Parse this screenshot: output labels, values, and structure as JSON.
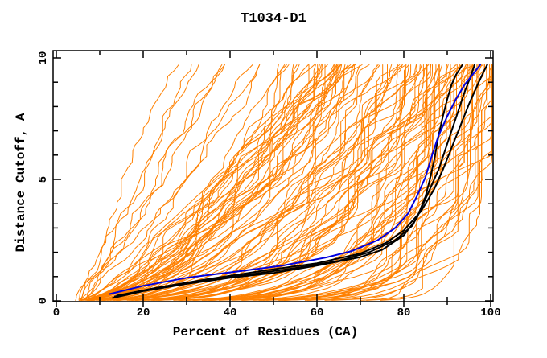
{
  "figure": {
    "background": "#ffffff"
  },
  "chart_data": {
    "type": "line",
    "title": "T1034-D1",
    "xlabel": "Percent of Residues (CA)",
    "ylabel": "Distance Cutoff, A",
    "xlim": [
      0,
      100
    ],
    "ylim": [
      0,
      10
    ],
    "x_major_ticks": [
      0,
      20,
      40,
      60,
      80,
      100
    ],
    "x_minor_ticks": [
      10,
      30,
      50,
      70,
      90
    ],
    "y_major_ticks": [
      0,
      5,
      10
    ],
    "y_minor_ticks": [
      1,
      2,
      3,
      4,
      6,
      7,
      8,
      9
    ],
    "grid": false,
    "legend": false,
    "curves_end_y": 9.72,
    "colors": {
      "ensemble": "#ff8000",
      "highlight": "#000000",
      "reference": "#0000e0",
      "frame": "#000000"
    },
    "highlight_series": [
      {
        "name": "black-model-1",
        "color": "#000000",
        "width": 2,
        "points": [
          [
            13,
            0.12
          ],
          [
            20,
            0.4
          ],
          [
            30,
            0.7
          ],
          [
            40,
            0.95
          ],
          [
            50,
            1.15
          ],
          [
            60,
            1.45
          ],
          [
            70,
            1.8
          ],
          [
            75,
            2.1
          ],
          [
            80,
            2.7
          ],
          [
            83,
            3.4
          ],
          [
            85,
            4.3
          ],
          [
            86,
            5.0
          ],
          [
            87,
            5.8
          ],
          [
            88,
            6.8
          ],
          [
            89,
            7.6
          ],
          [
            90,
            8.3
          ],
          [
            91,
            8.9
          ],
          [
            92,
            9.3
          ],
          [
            93.5,
            9.72
          ]
        ]
      },
      {
        "name": "black-model-2",
        "color": "#000000",
        "width": 2,
        "points": [
          [
            13.5,
            0.18
          ],
          [
            22,
            0.5
          ],
          [
            32,
            0.8
          ],
          [
            45,
            1.1
          ],
          [
            55,
            1.35
          ],
          [
            65,
            1.65
          ],
          [
            72,
            2.0
          ],
          [
            78,
            2.5
          ],
          [
            82,
            3.1
          ],
          [
            84,
            3.8
          ],
          [
            86,
            4.6
          ],
          [
            88,
            5.4
          ],
          [
            89.5,
            6.2
          ],
          [
            91,
            7.0
          ],
          [
            92.5,
            7.8
          ],
          [
            94,
            8.6
          ],
          [
            95.3,
            9.2
          ],
          [
            96.3,
            9.72
          ]
        ]
      },
      {
        "name": "black-model-3",
        "color": "#000000",
        "width": 2,
        "points": [
          [
            14,
            0.22
          ],
          [
            25,
            0.6
          ],
          [
            35,
            0.9
          ],
          [
            48,
            1.25
          ],
          [
            60,
            1.55
          ],
          [
            70,
            1.95
          ],
          [
            76,
            2.4
          ],
          [
            80,
            2.9
          ],
          [
            84,
            3.7
          ],
          [
            87,
            4.6
          ],
          [
            89,
            5.4
          ],
          [
            91,
            6.3
          ],
          [
            93,
            7.2
          ],
          [
            95,
            8.1
          ],
          [
            97,
            8.9
          ],
          [
            98.3,
            9.4
          ],
          [
            99.2,
            9.72
          ]
        ]
      },
      {
        "name": "blue-model",
        "color": "#0000e0",
        "width": 2,
        "points": [
          [
            12.3,
            0.28
          ],
          [
            20,
            0.62
          ],
          [
            30,
            0.95
          ],
          [
            42,
            1.22
          ],
          [
            52,
            1.45
          ],
          [
            62,
            1.78
          ],
          [
            68,
            2.05
          ],
          [
            74,
            2.5
          ],
          [
            78,
            3.0
          ],
          [
            81,
            3.6
          ],
          [
            83,
            4.3
          ],
          [
            85,
            5.1
          ],
          [
            86.5,
            6.0
          ],
          [
            88,
            6.8
          ],
          [
            90,
            7.6
          ],
          [
            92,
            8.3
          ],
          [
            94,
            8.9
          ],
          [
            96,
            9.35
          ],
          [
            97.6,
            9.72
          ]
        ]
      }
    ],
    "ensemble": {
      "name": "prediction-curves",
      "color": "#ff8000",
      "width": 1,
      "count": 115,
      "seed": 1234,
      "x_at_bottom_range": [
        4,
        9
      ],
      "x_at_top_range": [
        25,
        100
      ],
      "y_top": 9.72
    }
  }
}
